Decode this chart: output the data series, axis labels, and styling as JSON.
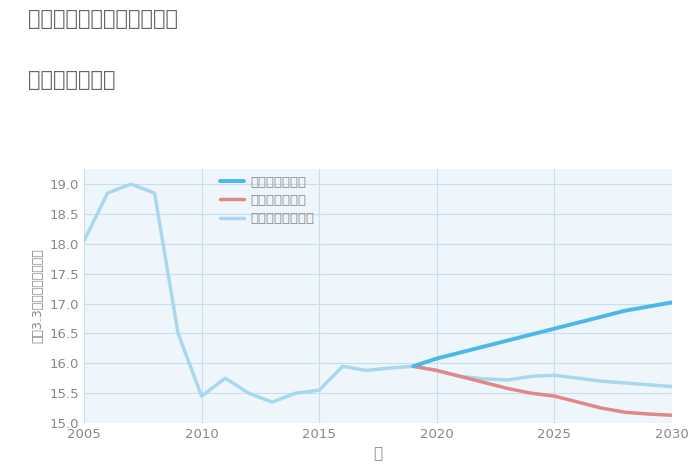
{
  "title_line1": "千葉県長生郡白子町剃金の",
  "title_line2": "土地の価格推移",
  "xlabel": "年",
  "ylabel": "平（3.3㎡）単価（万円）",
  "ylim": [
    15,
    19.25
  ],
  "yticks": [
    15,
    15.5,
    16,
    16.5,
    17,
    17.5,
    18,
    18.5,
    19
  ],
  "good_color": "#4ab8e8",
  "bad_color": "#e08888",
  "normal_color": "#a8d8ee",
  "good_label": "グッドシナリオ",
  "bad_label": "バッドシナリオ",
  "normal_label": "ノーマルシナリオ",
  "normal_x": [
    2005,
    2006,
    2007,
    2008,
    2009,
    2010,
    2011,
    2012,
    2013,
    2014,
    2015,
    2016,
    2017,
    2018,
    2019,
    2020,
    2021,
    2022,
    2023,
    2024,
    2025,
    2026,
    2027,
    2028,
    2029,
    2030
  ],
  "normal_y": [
    18.05,
    18.85,
    19.0,
    18.85,
    16.5,
    15.45,
    15.75,
    15.5,
    15.35,
    15.5,
    15.55,
    15.95,
    15.88,
    15.92,
    15.95,
    15.88,
    15.78,
    15.74,
    15.72,
    15.78,
    15.8,
    15.75,
    15.7,
    15.67,
    15.64,
    15.61
  ],
  "good_x": [
    2019,
    2020,
    2021,
    2022,
    2023,
    2024,
    2025,
    2026,
    2027,
    2028,
    2029,
    2030
  ],
  "good_y": [
    15.95,
    16.08,
    16.18,
    16.28,
    16.38,
    16.48,
    16.58,
    16.68,
    16.78,
    16.88,
    16.95,
    17.02
  ],
  "bad_x": [
    2019,
    2020,
    2021,
    2022,
    2023,
    2024,
    2025,
    2026,
    2027,
    2028,
    2029,
    2030
  ],
  "bad_y": [
    15.95,
    15.88,
    15.78,
    15.68,
    15.58,
    15.5,
    15.45,
    15.35,
    15.25,
    15.18,
    15.15,
    15.13
  ],
  "xticks": [
    2005,
    2010,
    2015,
    2020,
    2025,
    2030
  ],
  "title_color": "#666666",
  "axis_color": "#888888",
  "grid_color": "#c5dff0",
  "bg_color": "#eef6fc"
}
